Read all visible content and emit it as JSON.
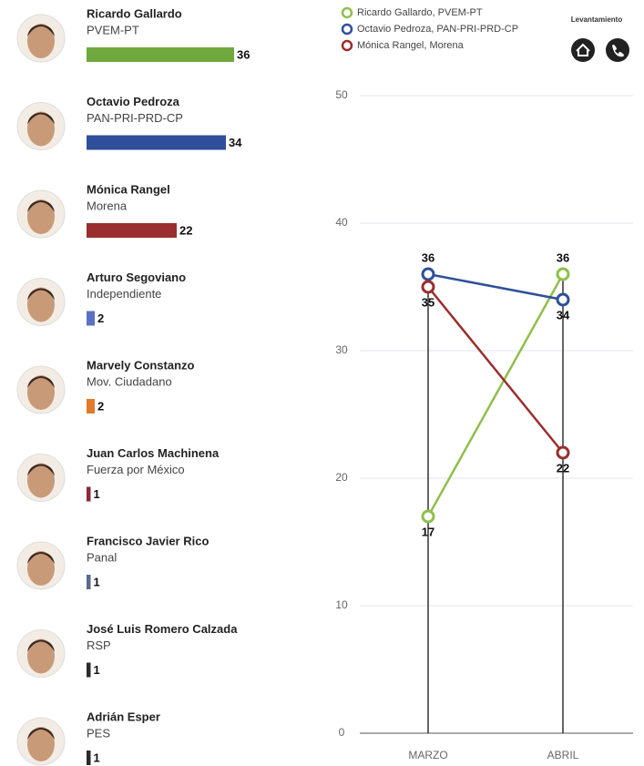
{
  "header": {
    "label": "Levantamiento"
  },
  "chart_data": [
    {
      "type": "hbar",
      "categories": [
        "Ricardo Gallardo",
        "Octavio Pedroza",
        "Mónica Rangel",
        "Arturo Segoviano",
        "Marvely Constanzo",
        "Juan Carlos Machinena",
        "Francisco Javier Rico",
        "José Luis Romero Calzada",
        "Adrián Esper"
      ],
      "parties": [
        "PVEM-PT",
        "PAN-PRI-PRD-CP",
        "Morena",
        "Independiente",
        "Mov. Ciudadano",
        "Fuerza por México",
        "Panal",
        "RSP",
        "PES"
      ],
      "values": [
        36,
        34,
        22,
        2,
        2,
        1,
        1,
        1,
        1
      ],
      "colors": [
        "#6fa83e",
        "#2f4f9a",
        "#9a2e2e",
        "#5b6fc4",
        "#e07b2c",
        "#8a2a3a",
        "#5a6a8a",
        "#2a2a2a",
        "#2a2a2a"
      ],
      "xlim": [
        0,
        40
      ]
    },
    {
      "type": "line",
      "categories": [
        "MARZO",
        "ABRIL"
      ],
      "series": [
        {
          "name": "Ricardo Gallardo, PVEM-PT",
          "color": "#8fbf4a",
          "values": [
            17,
            36
          ]
        },
        {
          "name": "Octavio Pedroza, PAN-PRI-PRD-CP",
          "color": "#2f4f9a",
          "values": [
            36,
            34
          ]
        },
        {
          "name": "Mónica Rangel, Morena",
          "color": "#9a2e2e",
          "values": [
            35,
            22
          ]
        }
      ],
      "ylim": [
        0,
        50
      ],
      "yticks": [
        0,
        10,
        20,
        30,
        40,
        50
      ],
      "grid": true
    }
  ]
}
